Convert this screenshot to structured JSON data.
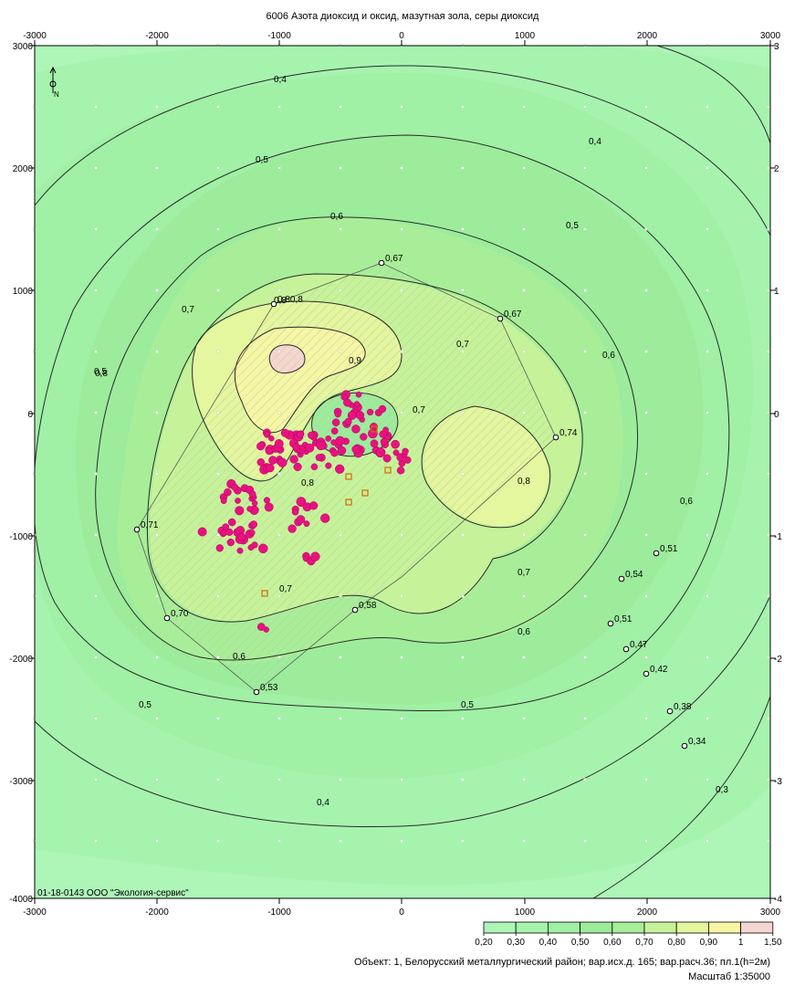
{
  "title": "6006 Азота диоксид и оксид, мазутная зола, серы диоксид",
  "x_ticks": [
    "-3000",
    "-2000",
    "-1000",
    "0",
    "1000",
    "2000",
    "3000"
  ],
  "y_ticks": [
    "3000",
    "2000",
    "1000",
    "0",
    "-1000",
    "-2000",
    "-4000"
  ],
  "right_ticks": [
    "3",
    "2",
    "1",
    "0",
    "-1",
    "-2",
    "-3",
    "-4"
  ],
  "footer_code": "01-18-0143 ООО \"Экология-сервис\"",
  "legend": {
    "labels": [
      "0,20",
      "0,30",
      "0,40",
      "0,50",
      "0,60",
      "0,70",
      "0,80",
      "0,90",
      "1",
      "1,50"
    ],
    "colors": [
      "#aef5b8",
      "#a6f3ae",
      "#a0f0a5",
      "#9cec9c",
      "#a8ee98",
      "#c6f39a",
      "#e4f69e",
      "#f6f6a4",
      "#f6d6d0"
    ]
  },
  "object_line": "Объект: 1, Белорусский металлургический район; вар.исх.д. 165; вар.расч.36; пл.1(h=2м)",
  "scale_line": "Масштаб 1:35000",
  "north_label": "N",
  "isolines": [
    {
      "value": "0,3"
    },
    {
      "value": "0,4"
    },
    {
      "value": "0,5"
    },
    {
      "value": "0,6"
    },
    {
      "value": "0,7"
    },
    {
      "value": "0,8"
    },
    {
      "value": "0,9"
    }
  ],
  "contour_labels": [
    "0,4",
    "0,4",
    "0,4",
    "0,5",
    "0,5",
    "0,5",
    "0,5",
    "0,5",
    "0,6",
    "0,6",
    "0,6",
    "0,6",
    "0,6",
    "0,7",
    "0,7",
    "0,7",
    "0,7",
    "0,7",
    "0,8",
    "0,8",
    "0,8",
    "0,8",
    "0,9",
    "0,3"
  ],
  "points": [
    {
      "label": "0,67"
    },
    {
      "label": "0,67"
    },
    {
      "label": "0,80,8"
    },
    {
      "label": "0,74"
    },
    {
      "label": "0,71"
    },
    {
      "label": "0,70"
    },
    {
      "label": "0,58"
    },
    {
      "label": "0,53"
    },
    {
      "label": "0,51"
    },
    {
      "label": "0,54"
    },
    {
      "label": "0,51"
    },
    {
      "label": "0,47"
    },
    {
      "label": "0,42"
    },
    {
      "label": "0,38"
    },
    {
      "label": "0,34"
    }
  ]
}
